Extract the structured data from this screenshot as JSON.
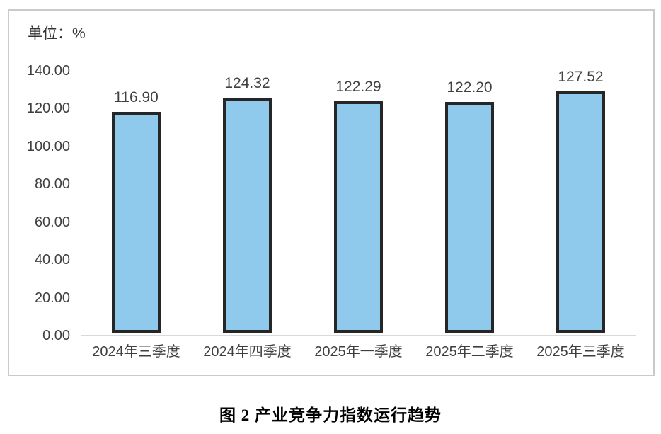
{
  "chart_data": {
    "type": "bar",
    "title": "图 2  产业竞争力指数运行趋势",
    "unit_label": "单位：%",
    "categories": [
      "2024年三季度",
      "2024年四季度",
      "2025年一季度",
      "2025年二季度",
      "2025年三季度"
    ],
    "values": [
      116.9,
      124.32,
      122.29,
      122.2,
      127.52
    ],
    "value_labels": [
      "116.90",
      "124.32",
      "122.29",
      "122.20",
      "127.52"
    ],
    "xlabel": "",
    "ylabel": "",
    "ylim": [
      0,
      140
    ],
    "ytick_step": 20,
    "yticks": [
      "140.00",
      "120.00",
      "100.00",
      "80.00",
      "60.00",
      "40.00",
      "20.00",
      "0.00"
    ],
    "grid": false,
    "legend": "none",
    "colors": {
      "bar_fill": "#8fc9ec",
      "bar_border": "#262626",
      "axis_line": "#d9d9d9",
      "frame_border": "#cacaca",
      "tick_text": "#404040",
      "caption_text": "#000000"
    }
  }
}
